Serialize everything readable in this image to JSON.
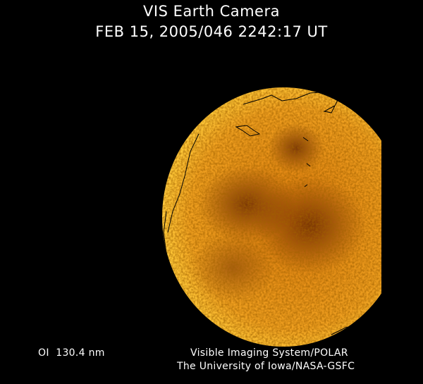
{
  "header": {
    "title": "VIS Earth Camera",
    "timestamp": "FEB 15, 2005/046 2242:17 UT"
  },
  "footer": {
    "wavelength": "OI  130.4 nm",
    "credit_line1": "Visible Imaging System/POLAR",
    "credit_line2": "The University of Iowa/NASA-GSFC"
  },
  "colors": {
    "background": "#000000",
    "earth_bright": "#ffc830",
    "earth_mid": "#e08a10",
    "earth_dark": "#6a2a00",
    "coastline": "#000000"
  }
}
